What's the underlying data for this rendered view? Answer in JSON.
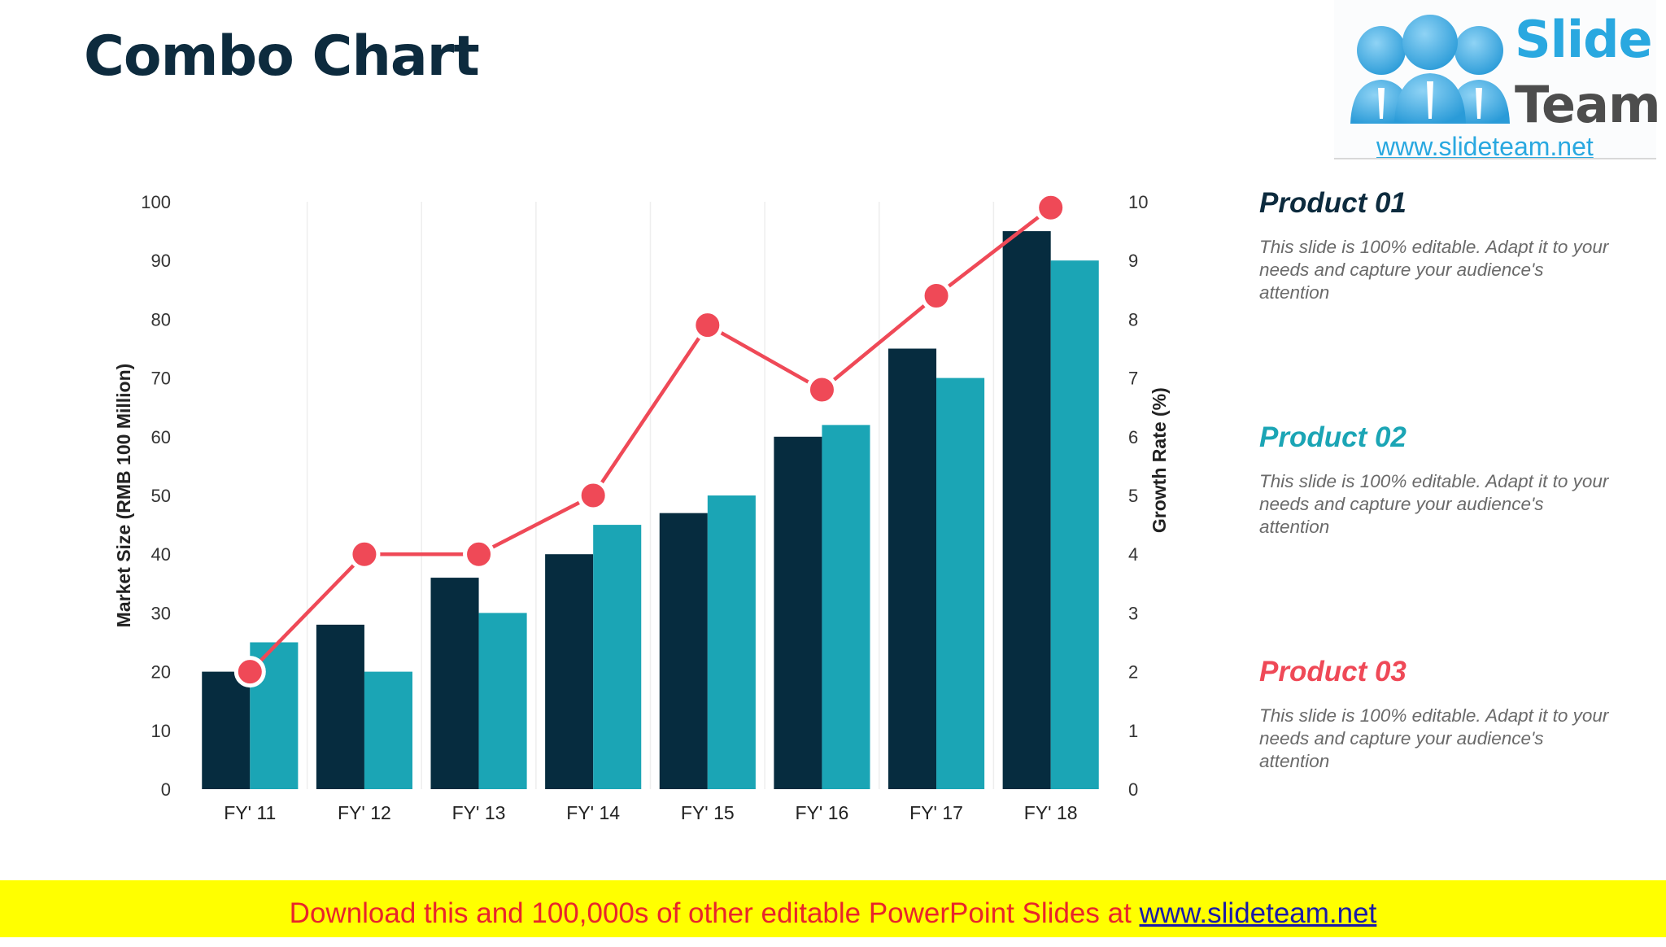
{
  "slide": {
    "title": "Combo Chart"
  },
  "logo": {
    "word1": "Slide",
    "word2": "Team",
    "url": "www.slideteam.net"
  },
  "products": [
    {
      "name": "Product 01",
      "desc": "This slide is 100% editable. Adapt it to your needs and capture your audience's attention",
      "color": "#0d2b3e"
    },
    {
      "name": "Product 02",
      "desc": "This slide is 100% editable. Adapt it to your needs and capture your audience's attention",
      "color": "#1ba5b5"
    },
    {
      "name": "Product 03",
      "desc": "This slide is 100% editable. Adapt it to your needs and capture your audience's attention",
      "color": "#ef4957"
    }
  ],
  "banner": {
    "text": "Download this and 100,000s of other editable PowerPoint Slides at ",
    "link": "www.slideteam.net"
  },
  "chart_data": {
    "type": "bar",
    "categories": [
      "FY' 11",
      "FY' 12",
      "FY' 13",
      "FY' 14",
      "FY' 15",
      "FY' 16",
      "FY' 17",
      "FY' 18"
    ],
    "series": [
      {
        "name": "Product 01",
        "axis": "left",
        "color": "#062c3f",
        "values": [
          20,
          28,
          36,
          40,
          47,
          60,
          75,
          95
        ]
      },
      {
        "name": "Product 02",
        "axis": "left",
        "color": "#1ba5b5",
        "values": [
          25,
          20,
          30,
          45,
          50,
          62,
          70,
          90
        ]
      },
      {
        "name": "Product 03",
        "type": "line",
        "axis": "right",
        "color": "#ef4957",
        "values": [
          2,
          4,
          4,
          5,
          7.9,
          6.8,
          8.4,
          9.9
        ]
      }
    ],
    "ylabel": "Market Size (RMB 100 Million)",
    "y2label": "Growth Rate (%)",
    "ylim": [
      0,
      100
    ],
    "y2lim": [
      0,
      10
    ],
    "yticks": [
      "0",
      "10",
      "20",
      "30",
      "40",
      "50",
      "60",
      "70",
      "80",
      "90",
      "100"
    ],
    "y2ticks": [
      "0",
      "1",
      "2",
      "3",
      "4",
      "5",
      "6",
      "7",
      "8",
      "9",
      "10"
    ]
  }
}
